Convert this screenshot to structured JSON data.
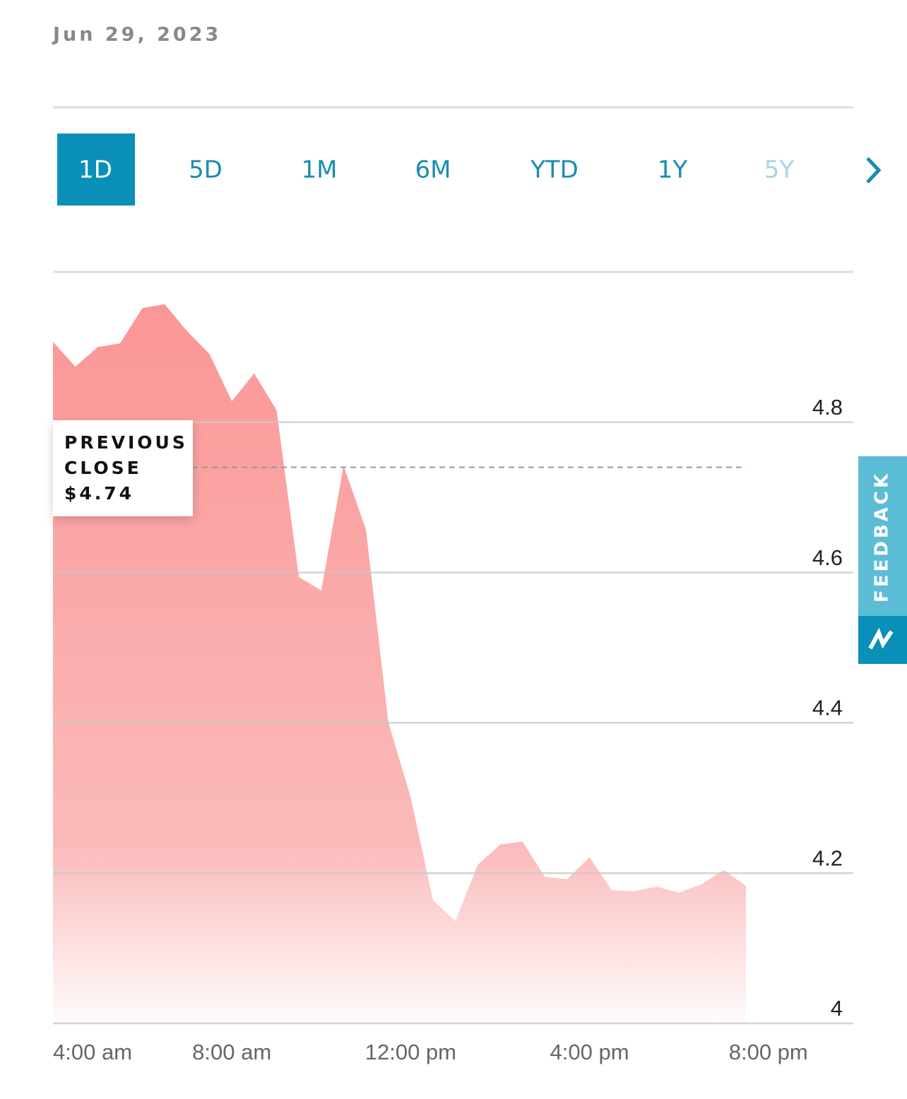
{
  "header": {
    "date": "Jun 29, 2023"
  },
  "tabs": [
    "1D",
    "5D",
    "1M",
    "6M",
    "YTD",
    "1Y",
    "5Y"
  ],
  "feedback": "FEEDBACK",
  "chart_data": {
    "type": "area",
    "x": [
      4,
      4.5,
      5,
      5.5,
      6,
      6.5,
      7,
      7.5,
      8,
      8.5,
      9,
      9.5,
      10,
      10.5,
      11,
      11.5,
      12,
      12.5,
      13,
      13.5,
      14,
      14.5,
      15,
      15.5,
      16,
      16.5,
      17,
      17.5,
      18,
      18.5,
      19,
      19.5
    ],
    "values": [
      4.907,
      4.874,
      4.9,
      4.905,
      4.952,
      4.957,
      4.921,
      4.891,
      4.828,
      4.865,
      4.816,
      4.594,
      4.576,
      4.742,
      4.657,
      4.401,
      4.301,
      4.164,
      4.136,
      4.211,
      4.238,
      4.242,
      4.195,
      4.192,
      4.221,
      4.177,
      4.176,
      4.182,
      4.174,
      4.185,
      4.204,
      4.183
    ],
    "color": "#fb9696",
    "xlim": [
      4,
      21.9
    ],
    "ylim": [
      4,
      5
    ],
    "xticks": [
      {
        "value": 4,
        "label": "4:00 am"
      },
      {
        "value": 8,
        "label": "8:00 am"
      },
      {
        "value": 12,
        "label": "12:00 pm"
      },
      {
        "value": 16,
        "label": "4:00 pm"
      },
      {
        "value": 20,
        "label": "8:00 pm"
      }
    ],
    "yticks": [
      4,
      4.2,
      4.4,
      4.6,
      4.8
    ],
    "grid": true,
    "reference": {
      "label": "PREVIOUS CLOSE",
      "value": 4.74,
      "value_label": "$4.74"
    }
  }
}
